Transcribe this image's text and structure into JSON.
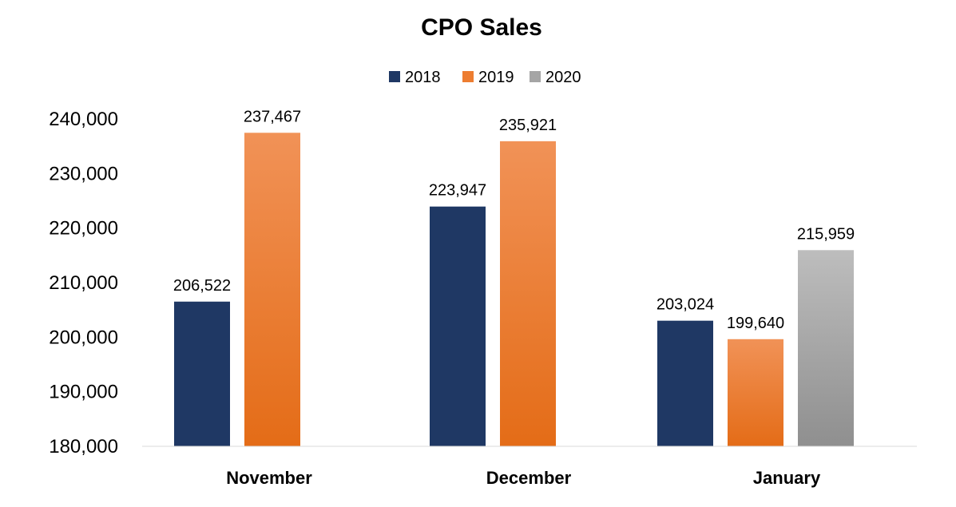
{
  "chart_data": {
    "type": "bar",
    "title": "CPO Sales",
    "xlabel": "",
    "ylabel": "",
    "categories": [
      "November",
      "December",
      "January"
    ],
    "series": [
      {
        "name": "2018",
        "values": [
          206522,
          223947,
          203024
        ],
        "labels": [
          "206,522",
          "223,947",
          "203,024"
        ],
        "color": "#1f3864"
      },
      {
        "name": "2019",
        "values": [
          237467,
          235921,
          199640
        ],
        "labels": [
          "237,467",
          "235,921",
          "199,640"
        ],
        "color": "#ed7d31"
      },
      {
        "name": "2020",
        "values": [
          null,
          null,
          215959
        ],
        "labels": [
          "",
          "",
          "215,959"
        ],
        "color": "#a5a5a5"
      }
    ],
    "ylim": [
      180000,
      240000
    ],
    "yticks": [
      180000,
      190000,
      200000,
      210000,
      220000,
      230000,
      240000
    ],
    "ytick_labels": [
      "180,000",
      "190,000",
      "200,000",
      "210,000",
      "220,000",
      "230,000",
      "240,000"
    ],
    "legend_position": "top-center",
    "grid": false
  }
}
